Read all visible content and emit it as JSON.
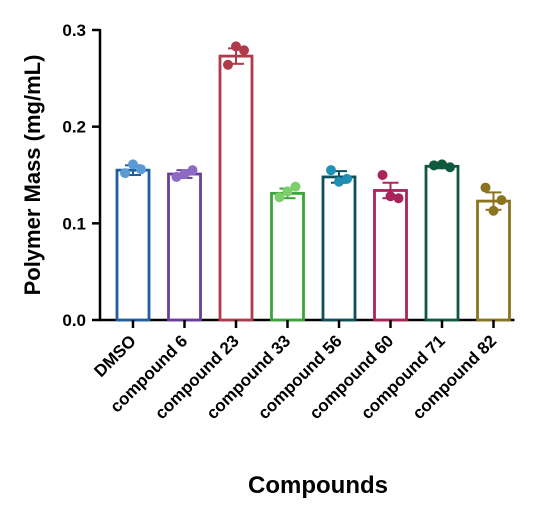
{
  "chart_data": {
    "type": "bar",
    "title": "",
    "xlabel": "Compounds",
    "ylabel": "Polymer Mass (mg/mL)",
    "ylim": [
      0,
      0.3
    ],
    "yticks": [
      "0.0",
      "0.1",
      "0.2",
      "0.3"
    ],
    "ytick_values": [
      0,
      0.1,
      0.2,
      0.3
    ],
    "grid": false,
    "legend": "none",
    "categories": [
      "DMSO",
      "compound 6",
      "compound 23",
      "compound 33",
      "compound 56",
      "compound 60",
      "compound 71",
      "compound 82"
    ],
    "values": [
      0.155,
      0.151,
      0.273,
      0.131,
      0.148,
      0.134,
      0.159,
      0.123
    ],
    "sem": [
      0.005,
      0.004,
      0.008,
      0.005,
      0.006,
      0.008,
      0.002,
      0.009
    ],
    "points": [
      [
        0.152,
        0.161,
        0.156
      ],
      [
        0.148,
        0.151,
        0.155
      ],
      [
        0.264,
        0.283,
        0.279
      ],
      [
        0.127,
        0.133,
        0.138
      ],
      [
        0.155,
        0.143,
        0.146
      ],
      [
        0.15,
        0.128,
        0.126
      ],
      [
        0.16,
        0.161,
        0.158
      ],
      [
        0.137,
        0.113,
        0.124
      ]
    ],
    "colors": [
      "#1f5fa0",
      "#6a3d9a",
      "#b03a4a",
      "#3aa63a",
      "#0d4f5c",
      "#a8245a",
      "#0f5a3c",
      "#8a7420"
    ],
    "point_colors": [
      "#5b9bd5",
      "#8e6bc2",
      "#b03a4a",
      "#7ccf6a",
      "#1f8fb5",
      "#a8245a",
      "#0f5a3c",
      "#8a7420"
    ]
  }
}
